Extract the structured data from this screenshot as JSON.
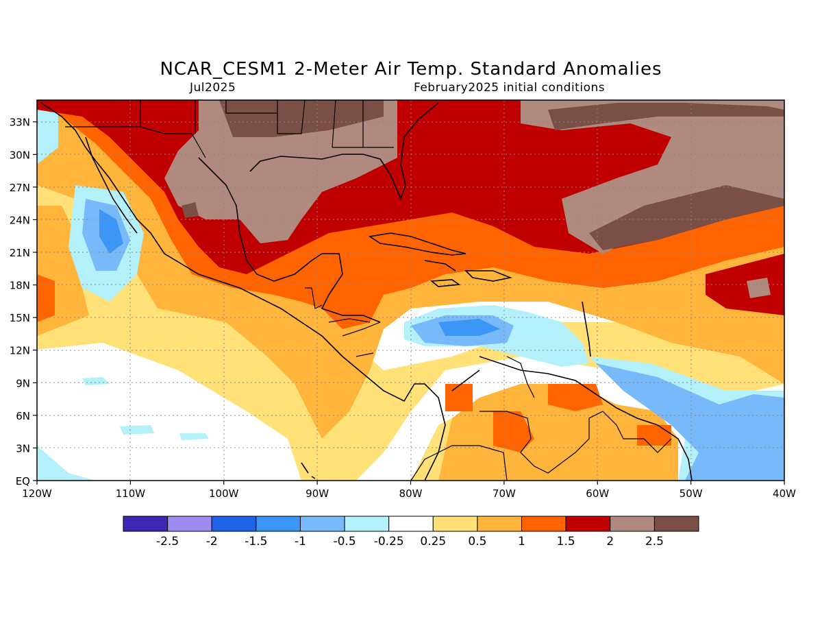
{
  "title": "NCAR_CESM1 2-Meter Air Temp. Standard Anomalies",
  "subtitle_left": "Jul2025",
  "subtitle_right": "February2025 initial conditions",
  "map": {
    "lat_labels": [
      "33N",
      "30N",
      "27N",
      "24N",
      "21N",
      "18N",
      "15N",
      "12N",
      "9N",
      "6N",
      "3N",
      "EQ"
    ],
    "lat_values": [
      33,
      30,
      27,
      24,
      21,
      18,
      15,
      12,
      9,
      6,
      3,
      0
    ],
    "lon_labels": [
      "120W",
      "110W",
      "100W",
      "90W",
      "80W",
      "70W",
      "60W",
      "50W",
      "40W"
    ],
    "lon_values": [
      -120,
      -110,
      -100,
      -90,
      -80,
      -70,
      -60,
      -50,
      -40
    ]
  },
  "legend": {
    "colors": [
      "#3c28b4",
      "#a08cf0",
      "#1e64e6",
      "#3c96f5",
      "#78b9fa",
      "#b4f0fa",
      "#ffffff",
      "#ffe178",
      "#ffb43c",
      "#ff6400",
      "#c00000",
      "#b08a7e",
      "#7a5046"
    ],
    "labels": [
      "-2.5",
      "-2",
      "-1.5",
      "-1",
      "-0.5",
      "-0.25",
      "0.25",
      "0.5",
      "1",
      "1.5",
      "2",
      "2.5"
    ]
  }
}
